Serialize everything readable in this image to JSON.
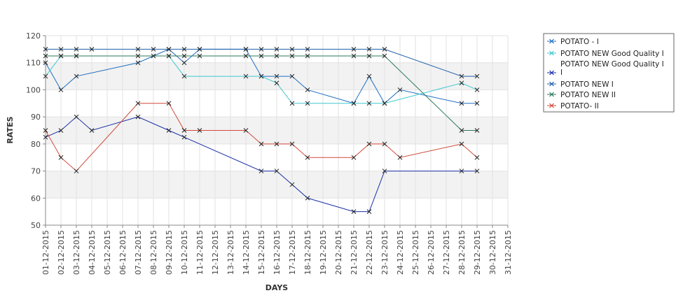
{
  "chart_data": {
    "type": "line",
    "xlabel": "DAYS",
    "ylabel": "RATES",
    "ylim": [
      50,
      120
    ],
    "y_ticks": [
      50,
      60,
      70,
      80,
      90,
      100,
      110,
      120
    ],
    "categories": [
      "01-12-2015",
      "02-12-2015",
      "03-12-2015",
      "04-12-2015",
      "05-12-2015",
      "06-12-2015",
      "07-12-2015",
      "08-12-2015",
      "09-12-2015",
      "10-12-2015",
      "11-12-2015",
      "12-12-2015",
      "13-12-2015",
      "14-12-2015",
      "15-12-2015",
      "16-12-2015",
      "17-12-2015",
      "18-12-2015",
      "19-12-2015",
      "20-12-2015",
      "21-12-2015",
      "22-12-2015",
      "23-12-2015",
      "24-12-2015",
      "25-12-2015",
      "26-12-2015",
      "27-12-2015",
      "28-12-2015",
      "29-12-2015",
      "30-12-2015",
      "31-12-2015"
    ],
    "grid": true,
    "alternating_bands": true,
    "legend_position": "right",
    "series": [
      {
        "name": "POTATO - I",
        "color": "#1f6fc1",
        "points": [
          [
            "01-12-2015",
            110
          ],
          [
            "02-12-2015",
            100
          ],
          [
            "03-12-2015",
            105
          ],
          [
            "07-12-2015",
            110
          ],
          [
            "09-12-2015",
            115
          ],
          [
            "10-12-2015",
            110
          ],
          [
            "11-12-2015",
            115
          ],
          [
            "14-12-2015",
            115
          ],
          [
            "15-12-2015",
            105
          ],
          [
            "16-12-2015",
            105
          ],
          [
            "17-12-2015",
            105
          ],
          [
            "18-12-2015",
            100
          ],
          [
            "21-12-2015",
            95
          ],
          [
            "22-12-2015",
            105
          ],
          [
            "23-12-2015",
            95
          ],
          [
            "24-12-2015",
            100
          ],
          [
            "28-12-2015",
            95
          ],
          [
            "29-12-2015",
            95
          ]
        ]
      },
      {
        "name": "POTATO NEW Good Quality I",
        "color": "#40c8d0",
        "points": [
          [
            "01-12-2015",
            105
          ],
          [
            "02-12-2015",
            112.5
          ],
          [
            "03-12-2015",
            112.5
          ],
          [
            "09-12-2015",
            112.5
          ],
          [
            "10-12-2015",
            105
          ],
          [
            "14-12-2015",
            105
          ],
          [
            "15-12-2015",
            105
          ],
          [
            "16-12-2015",
            102.5
          ],
          [
            "17-12-2015",
            95
          ],
          [
            "18-12-2015",
            95
          ],
          [
            "21-12-2015",
            95
          ],
          [
            "22-12-2015",
            95
          ],
          [
            "23-12-2015",
            95
          ],
          [
            "28-12-2015",
            102.5
          ],
          [
            "29-12-2015",
            100
          ]
        ]
      },
      {
        "name": "POTATO NEW Good Quality I I",
        "color": "#1a2fa8",
        "points": [
          [
            "01-12-2015",
            82.5
          ],
          [
            "02-12-2015",
            85
          ],
          [
            "03-12-2015",
            90
          ],
          [
            "04-12-2015",
            85
          ],
          [
            "07-12-2015",
            90
          ],
          [
            "09-12-2015",
            85
          ],
          [
            "10-12-2015",
            82.5
          ],
          [
            "15-12-2015",
            70
          ],
          [
            "16-12-2015",
            70
          ],
          [
            "17-12-2015",
            65
          ],
          [
            "18-12-2015",
            60
          ],
          [
            "21-12-2015",
            55
          ],
          [
            "22-12-2015",
            55
          ],
          [
            "23-12-2015",
            70
          ],
          [
            "28-12-2015",
            70
          ],
          [
            "29-12-2015",
            70
          ]
        ]
      },
      {
        "name": "POTATO NEW I",
        "color": "#1f5fa8",
        "points": [
          [
            "01-12-2015",
            115
          ],
          [
            "02-12-2015",
            115
          ],
          [
            "03-12-2015",
            115
          ],
          [
            "04-12-2015",
            115
          ],
          [
            "07-12-2015",
            115
          ],
          [
            "08-12-2015",
            115
          ],
          [
            "09-12-2015",
            115
          ],
          [
            "10-12-2015",
            115
          ],
          [
            "11-12-2015",
            115
          ],
          [
            "14-12-2015",
            115
          ],
          [
            "15-12-2015",
            115
          ],
          [
            "16-12-2015",
            115
          ],
          [
            "17-12-2015",
            115
          ],
          [
            "18-12-2015",
            115
          ],
          [
            "21-12-2015",
            115
          ],
          [
            "22-12-2015",
            115
          ],
          [
            "23-12-2015",
            115
          ],
          [
            "28-12-2015",
            105
          ],
          [
            "29-12-2015",
            105
          ]
        ]
      },
      {
        "name": "POTATO NEW II",
        "color": "#2a7a5a",
        "points": [
          [
            "01-12-2015",
            112.5
          ],
          [
            "02-12-2015",
            112.5
          ],
          [
            "03-12-2015",
            112.5
          ],
          [
            "07-12-2015",
            112.5
          ],
          [
            "08-12-2015",
            112.5
          ],
          [
            "09-12-2015",
            112.5
          ],
          [
            "10-12-2015",
            112.5
          ],
          [
            "11-12-2015",
            112.5
          ],
          [
            "14-12-2015",
            112.5
          ],
          [
            "15-12-2015",
            112.5
          ],
          [
            "16-12-2015",
            112.5
          ],
          [
            "17-12-2015",
            112.5
          ],
          [
            "18-12-2015",
            112.5
          ],
          [
            "21-12-2015",
            112.5
          ],
          [
            "22-12-2015",
            112.5
          ],
          [
            "23-12-2015",
            112.5
          ],
          [
            "28-12-2015",
            85
          ],
          [
            "29-12-2015",
            85
          ]
        ]
      },
      {
        "name": "POTATO- II",
        "color": "#d04a3a",
        "points": [
          [
            "01-12-2015",
            85
          ],
          [
            "02-12-2015",
            75
          ],
          [
            "03-12-2015",
            70
          ],
          [
            "07-12-2015",
            95
          ],
          [
            "09-12-2015",
            95
          ],
          [
            "10-12-2015",
            85
          ],
          [
            "11-12-2015",
            85
          ],
          [
            "14-12-2015",
            85
          ],
          [
            "15-12-2015",
            80
          ],
          [
            "16-12-2015",
            80
          ],
          [
            "17-12-2015",
            80
          ],
          [
            "18-12-2015",
            75
          ],
          [
            "21-12-2015",
            75
          ],
          [
            "22-12-2015",
            80
          ],
          [
            "23-12-2015",
            80
          ],
          [
            "24-12-2015",
            75
          ],
          [
            "28-12-2015",
            80
          ],
          [
            "29-12-2015",
            75
          ]
        ]
      }
    ]
  }
}
